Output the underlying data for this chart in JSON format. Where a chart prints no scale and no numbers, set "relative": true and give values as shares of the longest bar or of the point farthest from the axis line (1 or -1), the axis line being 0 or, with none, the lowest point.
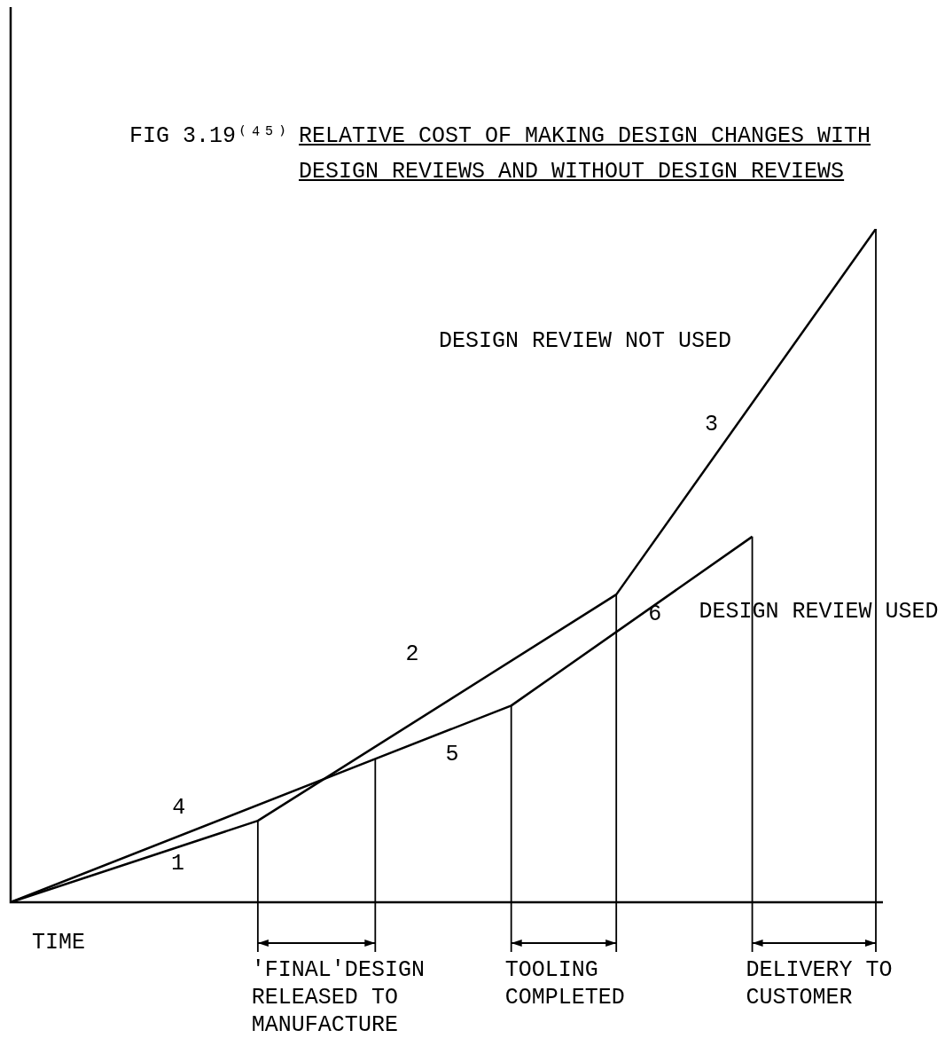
{
  "chart_data": {
    "type": "line",
    "relative": true,
    "title": "FIG 3.19⁽⁴⁵⁾",
    "subtitle": "RELATIVE COST OF MAKING DESIGN CHANGES WITH DESIGN REVIEWS AND WITHOUT DESIGN REVIEWS",
    "xlabel": "TIME",
    "marker": "none",
    "line_style": "solid",
    "legend": false,
    "categories": [
      null,
      null,
      null,
      null,
      null,
      null,
      null,
      null,
      null,
      null,
      null,
      null,
      null,
      null,
      null,
      null,
      null,
      null,
      null,
      null,
      null,
      null,
      null,
      null,
      null,
      null,
      null,
      null,
      null,
      null,
      null,
      null,
      null,
      null,
      null,
      null,
      null,
      null,
      null,
      null,
      null,
      null,
      null,
      null,
      null,
      null,
      null,
      null,
      null,
      null,
      null,
      null,
      null,
      null,
      null,
      null,
      null,
      null,
      null,
      null,
      null,
      null,
      null,
      null,
      null,
      null,
      null,
      null,
      null,
      null,
      null,
      null,
      null,
      null,
      null,
      null,
      null,
      null,
      null,
      null,
      null,
      null,
      null,
      null,
      null,
      null,
      null,
      null,
      null,
      null,
      null,
      null,
      null,
      null,
      null,
      null,
      null,
      null,
      null,
      null,
      null,
      null,
      null,
      null,
      null,
      null,
      null,
      null,
      null,
      null,
      null,
      null,
      null,
      null,
      null,
      null,
      null,
      null,
      null,
      null,
      null,
      null,
      null,
      null,
      null,
      null,
      null,
      null,
      null,
      null,
      null,
      null,
      null,
      null,
      null,
      null,
      null,
      null,
      null,
      null,
      null
    ],
    "series": [
      {
        "name": "DESIGN REVIEW NOT USED",
        "color": "#000000",
        "values": [
          0,
          null,
          null,
          null,
          null,
          null,
          null,
          null,
          null,
          null,
          null,
          null,
          null,
          null,
          null,
          null,
          null,
          null,
          null,
          null,
          null,
          null,
          null,
          null,
          null,
          null,
          null,
          null,
          null,
          null,
          null,
          null,
          null,
          null,
          null,
          null,
          null,
          null,
          null,
          null,
          0.121,
          null,
          null,
          null,
          null,
          null,
          null,
          null,
          null,
          null,
          null,
          null,
          null,
          null,
          null,
          null,
          null,
          null,
          null,
          null,
          null,
          null,
          null,
          null,
          null,
          null,
          null,
          null,
          null,
          null,
          null,
          null,
          null,
          null,
          null,
          null,
          null,
          null,
          null,
          null,
          null,
          null,
          null,
          null,
          null,
          null,
          null,
          null,
          null,
          null,
          null,
          null,
          null,
          null,
          null,
          null,
          null,
          null,
          0.457,
          null,
          null,
          null,
          null,
          null,
          null,
          null,
          null,
          null,
          null,
          null,
          null,
          null,
          null,
          null,
          null,
          null,
          null,
          null,
          null,
          null,
          null,
          null,
          null,
          null,
          null,
          null,
          null,
          null,
          null,
          null,
          null,
          null,
          null,
          null,
          null,
          null,
          null,
          null,
          null,
          null,
          1
        ]
      },
      {
        "name": "DESIGN REVIEW USED",
        "color": "#000000",
        "values": [
          0,
          null,
          null,
          null,
          null,
          null,
          null,
          null,
          null,
          null,
          null,
          null,
          null,
          null,
          null,
          null,
          null,
          null,
          null,
          null,
          null,
          null,
          null,
          null,
          null,
          null,
          null,
          null,
          null,
          null,
          null,
          null,
          null,
          null,
          null,
          null,
          null,
          null,
          null,
          null,
          null,
          null,
          null,
          null,
          null,
          null,
          null,
          null,
          null,
          null,
          null,
          null,
          null,
          null,
          null,
          null,
          null,
          null,
          null,
          0.213,
          null,
          null,
          null,
          null,
          null,
          null,
          null,
          null,
          null,
          null,
          null,
          null,
          null,
          null,
          null,
          null,
          null,
          null,
          null,
          null,
          null,
          0.292,
          null,
          null,
          null,
          null,
          null,
          null,
          null,
          null,
          null,
          null,
          null,
          null,
          null,
          null,
          null,
          null,
          null,
          null,
          null,
          null,
          null,
          null,
          null,
          null,
          null,
          null,
          null,
          null,
          null,
          null,
          null,
          null,
          null,
          null,
          null,
          null,
          null,
          null,
          0.543,
          null,
          null,
          null,
          null,
          null,
          null,
          null,
          null,
          null,
          null,
          null,
          null,
          null,
          null,
          null,
          null,
          null,
          null,
          null,
          null
        ]
      }
    ],
    "annotations": [
      "1",
      "4",
      "2",
      "5",
      "3",
      "6",
      "'FINAL'DESIGN RELEASED TO MANUFACTURE",
      "TOOLING COMPLETED",
      "DELIVERY TO CUSTOMER"
    ]
  }
}
